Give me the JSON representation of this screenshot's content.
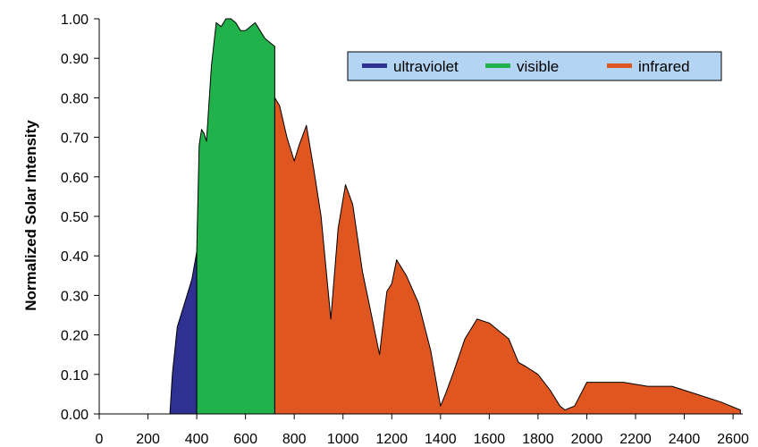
{
  "chart_data": {
    "type": "area",
    "title": "",
    "xlabel": "",
    "ylabel": "Normalized Solar Intensity",
    "xlim": [
      0,
      2640
    ],
    "ylim": [
      0,
      1.0
    ],
    "x_ticks": [
      "0",
      "200",
      "400",
      "600",
      "800",
      "1000",
      "1200",
      "1400",
      "1600",
      "1800",
      "2000",
      "2200",
      "2400",
      "2600"
    ],
    "y_ticks": [
      "0.00",
      "0.10",
      "0.20",
      "0.30",
      "0.40",
      "0.50",
      "0.60",
      "0.70",
      "0.80",
      "0.90",
      "1.00"
    ],
    "legend_position": "top-right",
    "series": [
      {
        "name": "ultraviolet",
        "color": "#2e3192",
        "x": [
          290,
          300,
          320,
          350,
          380,
          400,
          400
        ],
        "y": [
          0.0,
          0.1,
          0.22,
          0.28,
          0.34,
          0.41,
          0.0
        ]
      },
      {
        "name": "visible",
        "color": "#22b24c",
        "x": [
          400,
          410,
          420,
          430,
          440,
          460,
          480,
          500,
          520,
          540,
          560,
          580,
          600,
          620,
          640,
          660,
          680,
          700,
          720,
          720
        ],
        "y": [
          0.41,
          0.68,
          0.72,
          0.71,
          0.69,
          0.88,
          0.99,
          0.98,
          1.0,
          1.0,
          0.99,
          0.97,
          0.97,
          0.98,
          0.99,
          0.97,
          0.95,
          0.94,
          0.93,
          0.0
        ]
      },
      {
        "name": "infrared",
        "color": "#e05620",
        "x": [
          720,
          740,
          770,
          800,
          820,
          850,
          880,
          910,
          950,
          980,
          1010,
          1040,
          1080,
          1120,
          1150,
          1170,
          1180,
          1200,
          1220,
          1260,
          1310,
          1360,
          1400,
          1420,
          1450,
          1500,
          1550,
          1600,
          1640,
          1680,
          1700,
          1720,
          1750,
          1800,
          1850,
          1890,
          1910,
          1950,
          2000,
          2050,
          2150,
          2250,
          2350,
          2400,
          2450,
          2550,
          2630,
          2630
        ],
        "y": [
          0.8,
          0.78,
          0.7,
          0.64,
          0.68,
          0.73,
          0.62,
          0.5,
          0.24,
          0.47,
          0.58,
          0.53,
          0.36,
          0.24,
          0.15,
          0.26,
          0.31,
          0.33,
          0.39,
          0.35,
          0.28,
          0.16,
          0.02,
          0.05,
          0.1,
          0.19,
          0.24,
          0.23,
          0.21,
          0.19,
          0.16,
          0.13,
          0.12,
          0.1,
          0.06,
          0.02,
          0.01,
          0.02,
          0.08,
          0.08,
          0.08,
          0.07,
          0.07,
          0.06,
          0.05,
          0.03,
          0.01,
          0.0
        ]
      }
    ]
  }
}
